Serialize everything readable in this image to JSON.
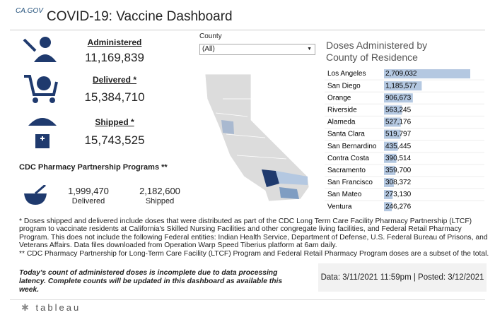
{
  "header": {
    "logo": "CA.GOV",
    "title": "COVID-19: Vaccine Dashboard"
  },
  "kpis": [
    {
      "label": "Administered",
      "value": "11,169,839"
    },
    {
      "label": "Delivered *",
      "value": "15,384,710"
    },
    {
      "label": "Shipped *",
      "value": "15,743,525"
    }
  ],
  "cdc": {
    "title": "CDC Pharmacy Partnership Programs **",
    "items": [
      {
        "value": "1,999,470",
        "label": "Delivered"
      },
      {
        "value": "2,182,600",
        "label": "Shipped"
      }
    ]
  },
  "filter": {
    "label": "County",
    "selected": "(All)"
  },
  "chart_data": {
    "type": "bar",
    "orientation": "horizontal",
    "title": "Doses Administered by County of Residence",
    "color": "#b4c8e1",
    "categories": [
      "Los Angeles",
      "San Diego",
      "Orange",
      "Riverside",
      "Alameda",
      "Santa Clara",
      "San Bernardino",
      "Contra Costa",
      "Sacramento",
      "San Francisco",
      "San Mateo",
      "Ventura"
    ],
    "values": [
      2709032,
      1185577,
      906673,
      563245,
      527176,
      519797,
      435445,
      390514,
      359700,
      308372,
      273130,
      246276
    ],
    "value_labels": [
      "2,709,032",
      "1,185,577",
      "906,673",
      "563,245",
      "527,176",
      "519,797",
      "435,445",
      "390,514",
      "359,700",
      "308,372",
      "273,130",
      "246,276"
    ]
  },
  "footnotes": [
    "* Doses shipped and delivered include doses that were distributed as part of the CDC Long Term Care Facility Pharmacy Partnership (LTCF) program to vaccinate residents at California's Skilled Nursing Facilities and other congregate living facilities, and Federal Retail Pharmacy Program. This does not include the following Federal entities: Indian Health Service, Department of Defense, U.S. Federal Bureau of Prisons, and Veterans Affairs. Data files downloaded from Operation Warp Speed Tiberius platform at 6am daily.",
    "** CDC Pharmacy Partnership for Long-Term Care Facility (LTCF) Program and Federal Retail Pharmacy Program doses are a subset of the total."
  ],
  "note": "Today's count of administered doses is incomplete due to data processing latency. Complete counts will be updated in this dashboard as available this week.",
  "dates": "Data: 3/11/2021 11:59pm | Posted: 3/12/2021",
  "footer": "tableau"
}
